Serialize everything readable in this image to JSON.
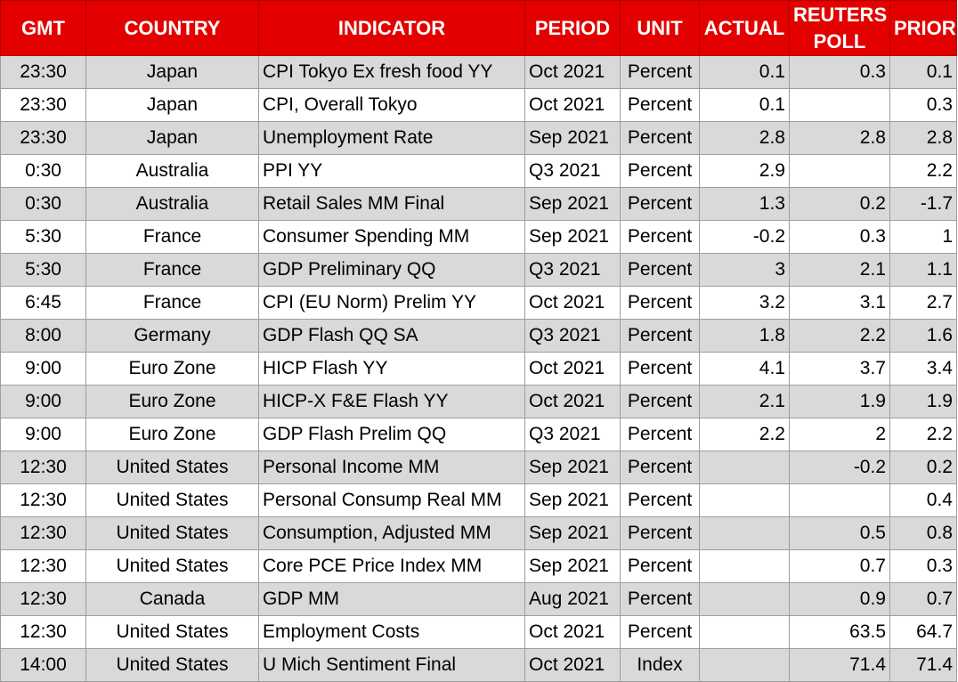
{
  "headers": {
    "gmt": "GMT",
    "country": "COUNTRY",
    "indicator": "INDICATOR",
    "period": "PERIOD",
    "unit": "UNIT",
    "actual": "ACTUAL",
    "poll_line1": "REUTERS",
    "poll_line2": "POLL",
    "prior": "PRIOR"
  },
  "rows": [
    {
      "gmt": "23:30",
      "country": "Japan",
      "indicator": "CPI Tokyo Ex fresh food YY",
      "period": "Oct 2021",
      "unit": "Percent",
      "actual": "0.1",
      "poll": "0.3",
      "prior": "0.1"
    },
    {
      "gmt": "23:30",
      "country": "Japan",
      "indicator": "CPI, Overall Tokyo",
      "period": "Oct 2021",
      "unit": "Percent",
      "actual": "0.1",
      "poll": "",
      "prior": "0.3"
    },
    {
      "gmt": "23:30",
      "country": "Japan",
      "indicator": "Unemployment Rate",
      "period": "Sep 2021",
      "unit": "Percent",
      "actual": "2.8",
      "poll": "2.8",
      "prior": "2.8"
    },
    {
      "gmt": "0:30",
      "country": "Australia",
      "indicator": "PPI YY",
      "period": "Q3 2021",
      "unit": "Percent",
      "actual": "2.9",
      "poll": "",
      "prior": "2.2"
    },
    {
      "gmt": "0:30",
      "country": "Australia",
      "indicator": "Retail Sales MM Final",
      "period": "Sep 2021",
      "unit": "Percent",
      "actual": "1.3",
      "poll": "0.2",
      "prior": "-1.7"
    },
    {
      "gmt": "5:30",
      "country": "France",
      "indicator": "Consumer Spending MM",
      "period": "Sep 2021",
      "unit": "Percent",
      "actual": "-0.2",
      "poll": "0.3",
      "prior": "1"
    },
    {
      "gmt": "5:30",
      "country": "France",
      "indicator": "GDP Preliminary QQ",
      "period": "Q3 2021",
      "unit": "Percent",
      "actual": "3",
      "poll": "2.1",
      "prior": "1.1"
    },
    {
      "gmt": "6:45",
      "country": "France",
      "indicator": "CPI (EU Norm) Prelim YY",
      "period": "Oct 2021",
      "unit": "Percent",
      "actual": "3.2",
      "poll": "3.1",
      "prior": "2.7"
    },
    {
      "gmt": "8:00",
      "country": "Germany",
      "indicator": "GDP Flash QQ SA",
      "period": "Q3 2021",
      "unit": "Percent",
      "actual": "1.8",
      "poll": "2.2",
      "prior": "1.6"
    },
    {
      "gmt": "9:00",
      "country": "Euro Zone",
      "indicator": "HICP Flash YY",
      "period": "Oct 2021",
      "unit": "Percent",
      "actual": "4.1",
      "poll": "3.7",
      "prior": "3.4"
    },
    {
      "gmt": "9:00",
      "country": "Euro Zone",
      "indicator": "HICP-X F&E Flash YY",
      "period": "Oct 2021",
      "unit": "Percent",
      "actual": "2.1",
      "poll": "1.9",
      "prior": "1.9"
    },
    {
      "gmt": "9:00",
      "country": "Euro Zone",
      "indicator": "GDP Flash Prelim QQ",
      "period": "Q3 2021",
      "unit": "Percent",
      "actual": "2.2",
      "poll": "2",
      "prior": "2.2"
    },
    {
      "gmt": "12:30",
      "country": "United States",
      "indicator": "Personal Income MM",
      "period": "Sep 2021",
      "unit": "Percent",
      "actual": "",
      "poll": "-0.2",
      "prior": "0.2"
    },
    {
      "gmt": "12:30",
      "country": "United States",
      "indicator": "Personal Consump Real MM",
      "period": "Sep 2021",
      "unit": "Percent",
      "actual": "",
      "poll": "",
      "prior": "0.4"
    },
    {
      "gmt": "12:30",
      "country": "United States",
      "indicator": "Consumption, Adjusted MM",
      "period": "Sep 2021",
      "unit": "Percent",
      "actual": "",
      "poll": "0.5",
      "prior": "0.8"
    },
    {
      "gmt": "12:30",
      "country": "United States",
      "indicator": "Core PCE Price Index MM",
      "period": "Sep 2021",
      "unit": "Percent",
      "actual": "",
      "poll": "0.7",
      "prior": "0.3"
    },
    {
      "gmt": "12:30",
      "country": "Canada",
      "indicator": "GDP MM",
      "period": "Aug 2021",
      "unit": "Percent",
      "actual": "",
      "poll": "0.9",
      "prior": "0.7"
    },
    {
      "gmt": "12:30",
      "country": "United States",
      "indicator": "Employment Costs",
      "period": "Oct 2021",
      "unit": "Percent",
      "actual": "",
      "poll": "63.5",
      "prior": "64.7"
    },
    {
      "gmt": "14:00",
      "country": "United States",
      "indicator": "U Mich Sentiment Final",
      "period": "Oct 2021",
      "unit": "Index",
      "actual": "",
      "poll": "71.4",
      "prior": "71.4"
    }
  ],
  "colors": {
    "header_bg": "#e20000",
    "header_text": "#ffffff",
    "row_shaded": "#d9d9d9",
    "row_plain": "#ffffff",
    "grid": "#9e9e9e"
  }
}
